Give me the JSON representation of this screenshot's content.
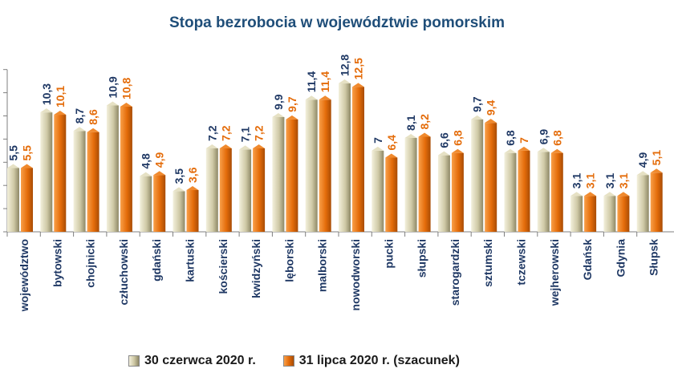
{
  "chart_data": {
    "type": "bar",
    "title": "Stopa bezrobocia w województwie pomorskim",
    "xlabel": "",
    "ylabel": "",
    "ylim": [
      0,
      14
    ],
    "grid": false,
    "legend_position": "bottom",
    "categories": [
      "województwo",
      "bytowski",
      "chojnicki",
      "człuchowski",
      "gdański",
      "kartuski",
      "kościerski",
      "kwidzyński",
      "lęborski",
      "malborski",
      "nowodworski",
      "pucki",
      "słupski",
      "starogardzki",
      "sztumski",
      "tczewski",
      "wejherowski",
      "Gdańsk",
      "Gdynia",
      "Słupsk"
    ],
    "series": [
      {
        "name": "30 czerwca 2020 r.",
        "color": "#cfc9a6",
        "label_color": "#1f3864",
        "values": [
          5.5,
          10.3,
          8.7,
          10.9,
          4.8,
          3.5,
          7.2,
          7.1,
          9.9,
          11.4,
          12.8,
          7.0,
          8.1,
          6.6,
          9.7,
          6.8,
          6.9,
          3.1,
          3.1,
          4.9
        ]
      },
      {
        "name": "31 lipca 2020 r. (szacunek)",
        "color": "#e46c0a",
        "label_color": "#e46c0a",
        "values": [
          5.5,
          10.1,
          8.6,
          10.8,
          4.9,
          3.6,
          7.2,
          7.2,
          9.7,
          11.4,
          12.5,
          6.4,
          8.2,
          6.8,
          9.4,
          7.0,
          6.8,
          3.1,
          3.1,
          5.1
        ]
      }
    ]
  }
}
